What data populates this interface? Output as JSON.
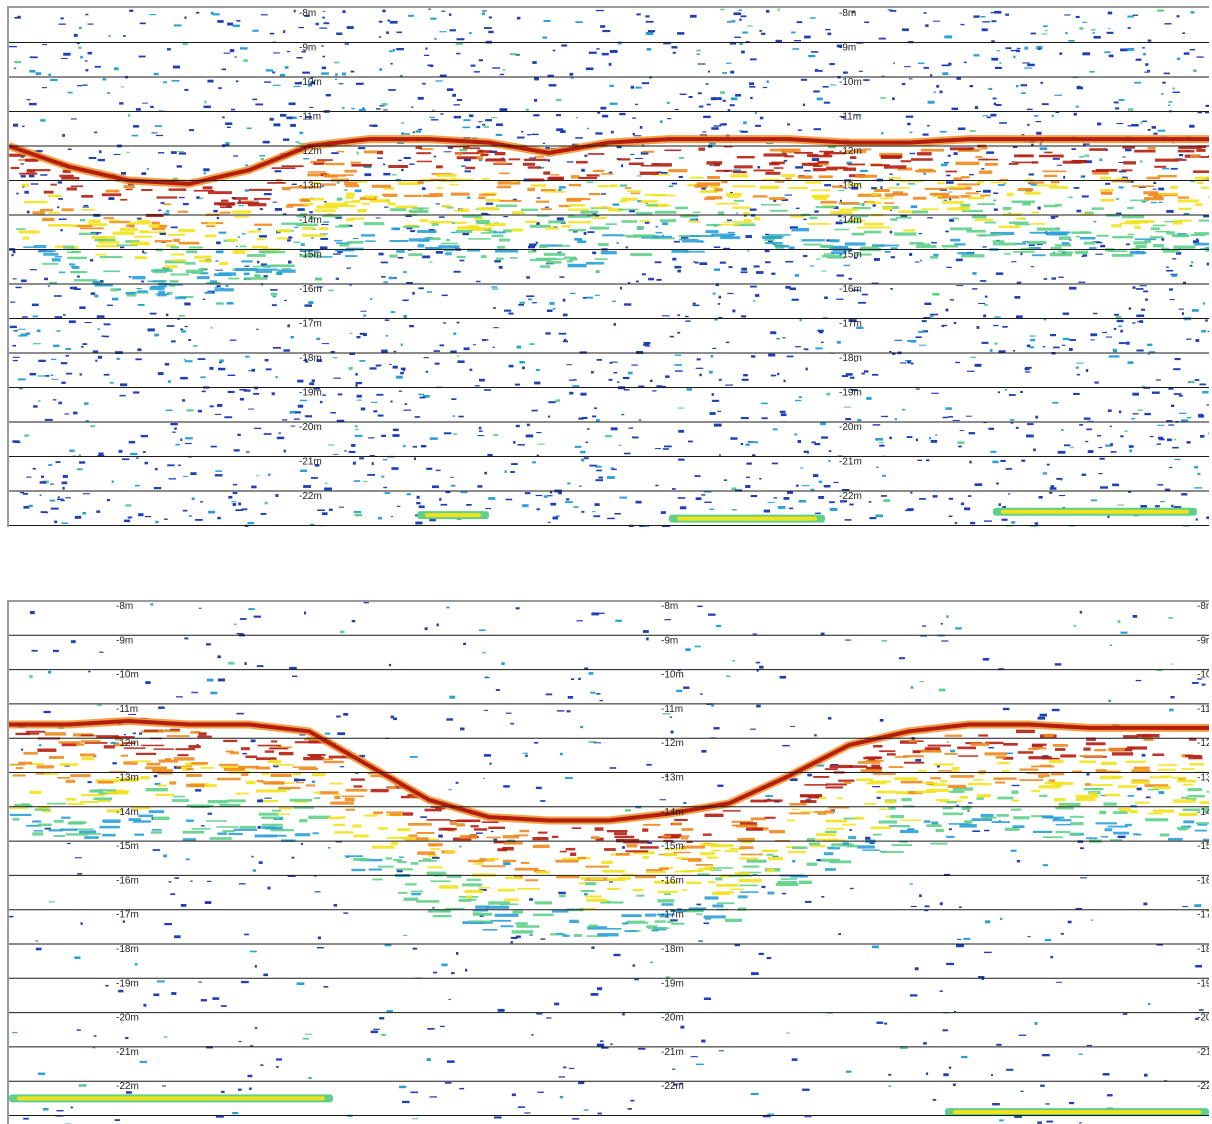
{
  "chart_data": [
    {
      "type": "heatmap",
      "depth_labels": [
        "-8m",
        "-9m",
        "-10m",
        "-11m",
        "-12m",
        "-13m",
        "-14m",
        "-15m",
        "-16m",
        "-17m",
        "-18m",
        "-19m",
        "-20m",
        "-21m",
        "-22m"
      ],
      "depth_range_m": [
        -8,
        -22
      ],
      "grid": true,
      "colorscale": [
        "#1f3fb4",
        "#2aa0d8",
        "#5fd08a",
        "#f2e21c",
        "#f08a1c",
        "#b41e0f"
      ],
      "seabed_profile": {
        "x_frac": [
          0,
          0.05,
          0.1,
          0.15,
          0.2,
          0.25,
          0.3,
          0.35,
          0.4,
          0.45,
          0.5,
          0.55,
          0.6,
          0.65,
          0.7,
          0.75,
          0.8,
          0.85,
          0.9,
          0.95,
          1.0
        ],
        "depth_m": [
          -12.0,
          -12.6,
          -13.0,
          -13.1,
          -12.7,
          -12.0,
          -11.8,
          -11.8,
          -11.9,
          -12.2,
          -11.9,
          -11.8,
          -11.8,
          -11.8,
          -11.9,
          -11.9,
          -11.8,
          -11.8,
          -11.8,
          -11.8,
          -11.8
        ]
      },
      "deep_reflector_segments": [
        {
          "x_start": 0.34,
          "x_end": 0.4,
          "depth_m": -22.7
        },
        {
          "x_start": 0.55,
          "x_end": 0.68,
          "depth_m": -22.8
        },
        {
          "x_start": 0.82,
          "x_end": 0.99,
          "depth_m": -22.6
        }
      ]
    },
    {
      "type": "heatmap",
      "depth_labels": [
        "-8m",
        "-9m",
        "-10m",
        "-11m",
        "-12m",
        "-13m",
        "-14m",
        "-15m",
        "-16m",
        "-17m",
        "-18m",
        "-19m",
        "-20m",
        "-21m",
        "-22m"
      ],
      "depth_range_m": [
        -8,
        -22
      ],
      "grid": true,
      "colorscale": [
        "#1f3fb4",
        "#2aa0d8",
        "#5fd08a",
        "#f2e21c",
        "#f08a1c",
        "#b41e0f"
      ],
      "seabed_profile": {
        "x_frac": [
          0,
          0.05,
          0.1,
          0.15,
          0.2,
          0.25,
          0.3,
          0.35,
          0.4,
          0.45,
          0.5,
          0.55,
          0.6,
          0.65,
          0.7,
          0.75,
          0.8,
          0.85,
          0.9,
          0.95,
          1.0
        ],
        "depth_m": [
          -11.6,
          -11.6,
          -11.5,
          -11.6,
          -11.6,
          -11.8,
          -12.8,
          -13.8,
          -14.3,
          -14.4,
          -14.4,
          -14.2,
          -13.9,
          -13.1,
          -12.2,
          -11.8,
          -11.6,
          -11.6,
          -11.7,
          -11.7,
          -11.7
        ]
      },
      "deep_reflector_segments": [
        {
          "x_start": 0.0,
          "x_end": 0.27,
          "depth_m": -22.5
        },
        {
          "x_start": 0.78,
          "x_end": 1.0,
          "depth_m": -22.9
        }
      ]
    }
  ]
}
